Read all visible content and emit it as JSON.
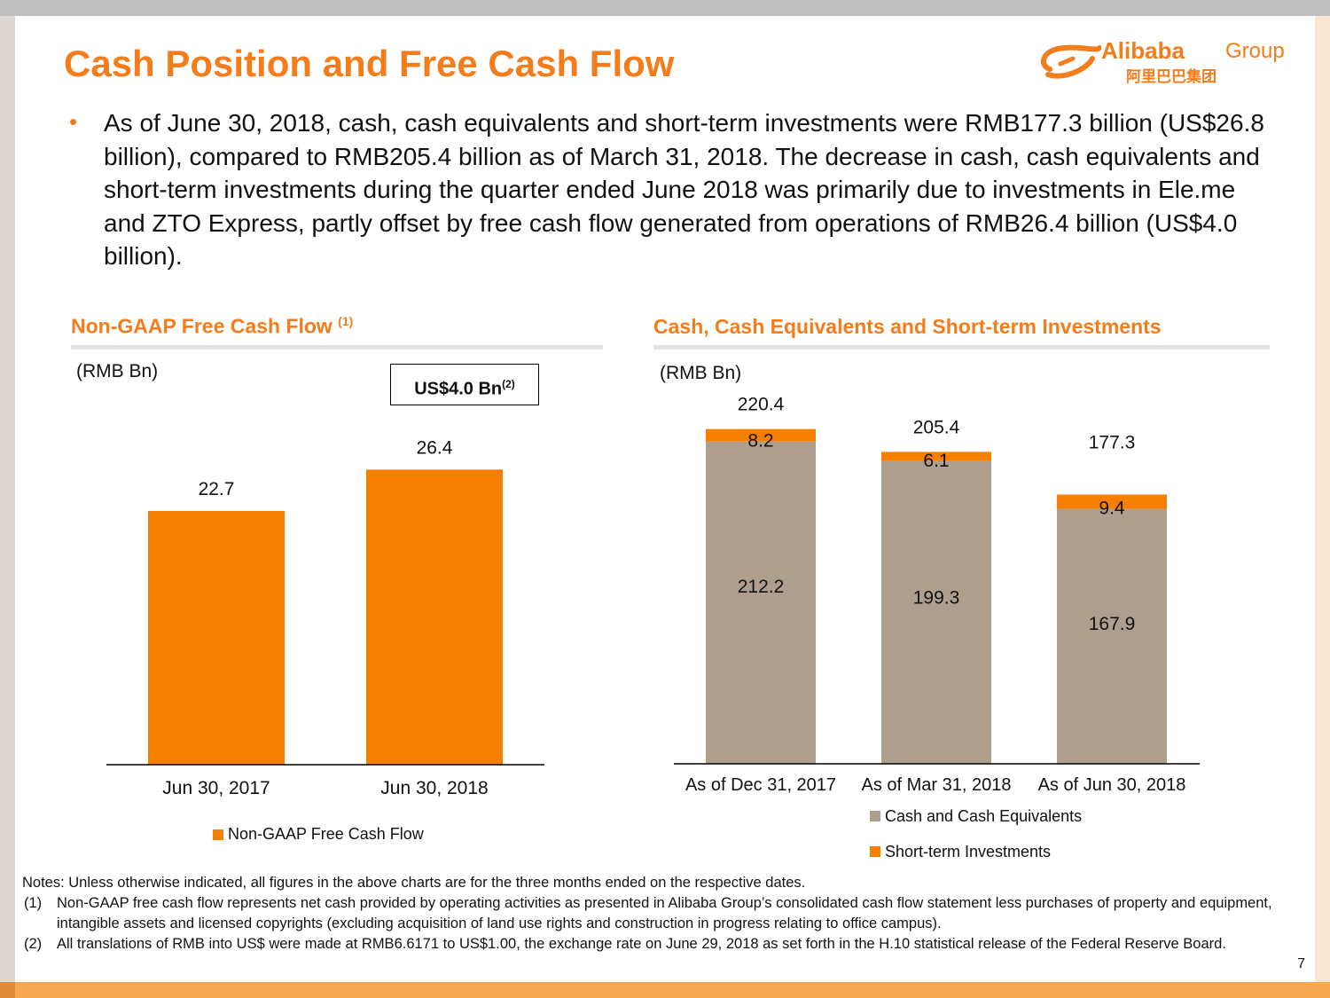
{
  "slide": {
    "title": "Cash Position and Free Cash Flow",
    "page_number": "7",
    "bullet": "As of June 30, 2018, cash, cash equivalents and short-term investments were RMB177.3 billion (US$26.8 billion), compared to RMB205.4 billion as of March 31, 2018. The decrease in cash, cash equivalents and short-term investments during the quarter ended June 2018 was primarily due to investments in Ele.me and ZTO Express, partly offset by free cash flow generated from operations of RMB26.4 billion (US$4.0 billion)."
  },
  "logo": {
    "brand": "Alibaba",
    "group": "Group",
    "chinese": "阿里巴巴集团"
  },
  "colors": {
    "accent": "#f47c1b",
    "bar_orange": "#f77f00",
    "bar_taupe": "#ad9e8d"
  },
  "notes": {
    "intro": "Notes: Unless otherwise indicated, all figures in the above charts are for the three months ended on the respective dates.",
    "items": [
      {
        "num": "(1)",
        "text": "Non-GAAP free cash flow represents net cash provided by operating activities as presented in Alibaba Group’s consolidated cash flow statement less purchases of property and equipment, intangible assets and licensed copyrights (excluding acquisition of land use rights and construction in progress relating to office campus)."
      },
      {
        "num": "(2)",
        "text": "All translations of RMB into US$ were made at RMB6.6171 to US$1.00, the exchange rate on June 29, 2018 as set forth in the H.10 statistical release of the Federal Reserve Board."
      }
    ]
  },
  "chart_data": [
    {
      "type": "bar",
      "title": "Non-GAAP Free Cash Flow",
      "title_sup": "(1)",
      "unit_label": "(RMB Bn)",
      "callout": "US$4.0 Bn",
      "callout_sup": "(2)",
      "categories": [
        "Jun 30, 2017",
        "Jun 30, 2018"
      ],
      "series": [
        {
          "name": "Non-GAAP Free Cash Flow",
          "values": [
            22.7,
            26.4
          ]
        }
      ],
      "value_labels": [
        "22.7",
        "26.4"
      ],
      "ylim": [
        0,
        30
      ],
      "legend_position": "bottom"
    },
    {
      "type": "bar",
      "stacked": true,
      "title": "Cash, Cash Equivalents and Short-term Investments",
      "unit_label": "(RMB Bn)",
      "categories": [
        "As of Dec 31, 2017",
        "As of Mar 31, 2018",
        "As of Jun 30, 2018"
      ],
      "series": [
        {
          "name": "Cash and Cash Equivalents",
          "values": [
            212.2,
            199.3,
            167.9
          ],
          "labels": [
            "212.2",
            "199.3",
            "167.9"
          ]
        },
        {
          "name": "Short-term Investments",
          "values": [
            8.2,
            6.1,
            9.4
          ],
          "labels": [
            "8.2",
            "6.1",
            "9.4"
          ]
        }
      ],
      "totals": [
        220.4,
        205.4,
        177.3
      ],
      "total_labels": [
        "220.4",
        "205.4",
        "177.3"
      ],
      "ylim": [
        0,
        250
      ],
      "legend_position": "bottom"
    }
  ]
}
